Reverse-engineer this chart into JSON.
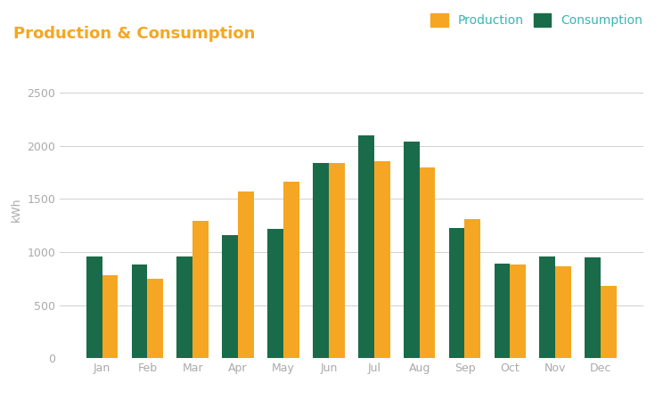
{
  "title": "Production & Consumption",
  "title_color": "#f5a623",
  "ylabel": "kWh",
  "months": [
    "Jan",
    "Feb",
    "Mar",
    "Apr",
    "May",
    "Jun",
    "Jul",
    "Aug",
    "Sep",
    "Oct",
    "Nov",
    "Dec"
  ],
  "production": [
    780,
    750,
    1290,
    1570,
    1660,
    1840,
    1860,
    1800,
    1310,
    880,
    870,
    680
  ],
  "consumption": [
    960,
    880,
    960,
    1160,
    1220,
    1840,
    2100,
    2040,
    1230,
    890,
    960,
    950
  ],
  "production_color": "#f5a623",
  "consumption_color": "#1a6b4a",
  "background_color": "#ffffff",
  "grid_color": "#d0d0d0",
  "ylim": [
    0,
    2800
  ],
  "yticks": [
    0,
    500,
    1000,
    1500,
    2000,
    2500
  ],
  "bar_width": 0.35,
  "legend_production": "Production",
  "legend_consumption": "Consumption",
  "legend_text_color": "#3ab5b5",
  "tick_label_color": "#aaaaaa",
  "title_fontsize": 13
}
